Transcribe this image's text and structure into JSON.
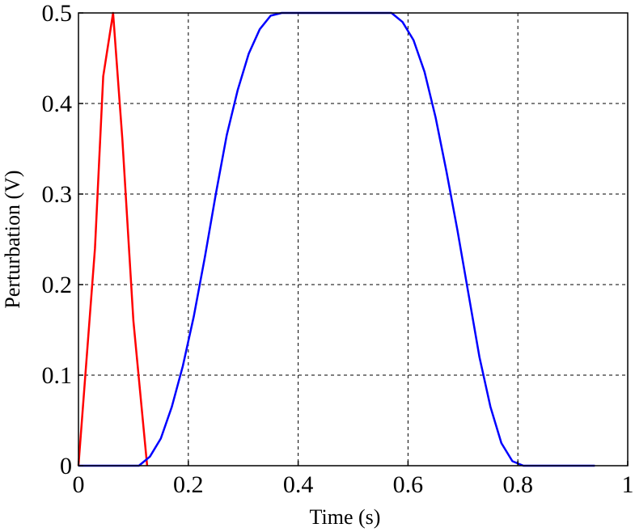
{
  "chart_data": {
    "type": "line",
    "title": "",
    "xlabel": "Time (s)",
    "ylabel": "Perturbation (V)",
    "xlim": [
      0,
      1
    ],
    "ylim": [
      0,
      0.5
    ],
    "xticks": [
      0,
      0.2,
      0.4,
      0.6,
      0.8,
      1
    ],
    "xtick_labels": [
      "0",
      "0.2",
      "0.4",
      "0.6",
      "0.8",
      "1"
    ],
    "yticks": [
      0,
      0.1,
      0.2,
      0.3,
      0.4,
      0.5
    ],
    "ytick_labels": [
      "0",
      "0.1",
      "0.2",
      "0.3",
      "0.4",
      "0.5"
    ],
    "grid": true,
    "series": [
      {
        "color": "#ff0000",
        "x": [
          0,
          0.03,
          0.045,
          0.063,
          0.08,
          0.1,
          0.125
        ],
        "y": [
          0,
          0.24,
          0.43,
          0.5,
          0.36,
          0.16,
          0
        ]
      },
      {
        "color": "#0000ff",
        "x": [
          0,
          0.11,
          0.13,
          0.15,
          0.17,
          0.19,
          0.21,
          0.23,
          0.25,
          0.27,
          0.29,
          0.31,
          0.33,
          0.35,
          0.37,
          0.4,
          0.5,
          0.57,
          0.59,
          0.61,
          0.63,
          0.65,
          0.67,
          0.69,
          0.71,
          0.73,
          0.75,
          0.77,
          0.79,
          0.81,
          0.83,
          0.9,
          0.94
        ],
        "y": [
          0,
          0,
          0.01,
          0.03,
          0.065,
          0.11,
          0.165,
          0.23,
          0.3,
          0.365,
          0.415,
          0.455,
          0.482,
          0.497,
          0.5,
          0.5,
          0.5,
          0.5,
          0.49,
          0.47,
          0.435,
          0.385,
          0.325,
          0.26,
          0.19,
          0.12,
          0.065,
          0.025,
          0.005,
          0,
          0,
          0,
          0
        ]
      }
    ]
  }
}
